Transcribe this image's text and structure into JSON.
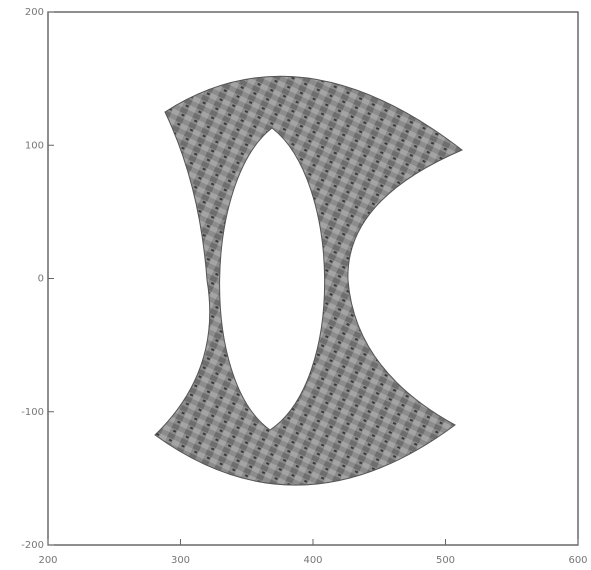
{
  "chart_data": {
    "type": "image",
    "xlim": [
      200,
      600
    ],
    "xticks": [
      200,
      300,
      400,
      500,
      600
    ],
    "ylim": [
      -200,
      200
    ],
    "yticks": [
      -200,
      -100,
      0,
      100,
      200
    ]
  }
}
